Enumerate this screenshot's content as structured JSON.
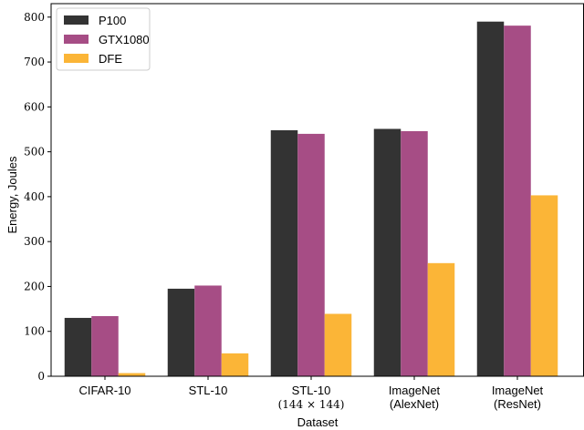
{
  "chart_data": {
    "type": "bar",
    "categories": [
      {
        "lines": [
          "CIFAR-10"
        ]
      },
      {
        "lines": [
          "STL-10"
        ]
      },
      {
        "lines": [
          "STL-10",
          "(144 × 144)"
        ]
      },
      {
        "lines": [
          "ImageNet",
          "(AlexNet)"
        ]
      },
      {
        "lines": [
          "ImageNet",
          "(ResNet)"
        ]
      }
    ],
    "series": [
      {
        "name": "P100",
        "color": "#333333",
        "values": [
          130,
          195,
          548,
          551,
          790
        ]
      },
      {
        "name": "GTX1080",
        "color": "#a64d85",
        "values": [
          134,
          202,
          540,
          546,
          781
        ]
      },
      {
        "name": "DFE",
        "color": "#fbb537",
        "values": [
          7,
          51,
          139,
          252,
          403
        ]
      }
    ],
    "xlabel": "Dataset",
    "ylabel": "Energy, Joules",
    "ylim": [
      0,
      830
    ],
    "yticks": [
      0,
      100,
      200,
      300,
      400,
      500,
      600,
      700,
      800
    ],
    "legend_position": "top-left",
    "grid": false
  }
}
